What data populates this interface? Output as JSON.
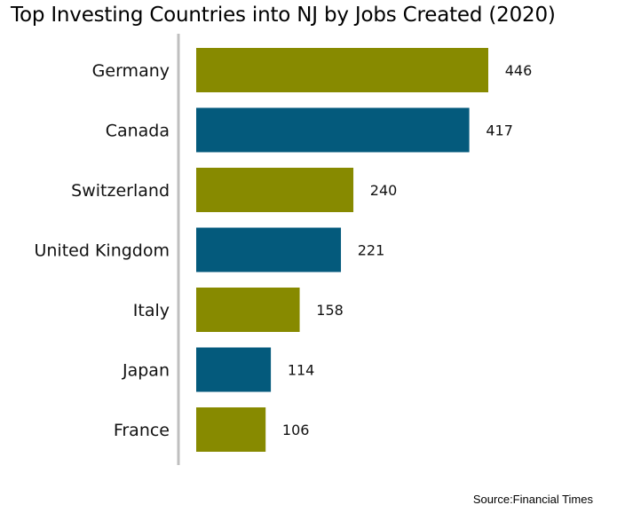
{
  "colors": {
    "olive": "#878A00",
    "blue": "#045A7C",
    "axis": "#BFBFBF"
  },
  "source": "Source:Financial Times",
  "chart_data": {
    "type": "bar",
    "orientation": "horizontal",
    "title": "Top Investing Countries into NJ by Jobs Created (2020)",
    "xlabel": "",
    "ylabel": "",
    "categories": [
      "Germany",
      "Canada",
      "Switzerland",
      "United Kingdom",
      "Italy",
      "Japan",
      "France"
    ],
    "values": [
      446,
      417,
      240,
      221,
      158,
      114,
      106
    ],
    "bar_colors": [
      "olive",
      "blue",
      "olive",
      "blue",
      "olive",
      "blue",
      "olive"
    ],
    "data_labels": true,
    "grid": false,
    "legend": "none"
  }
}
